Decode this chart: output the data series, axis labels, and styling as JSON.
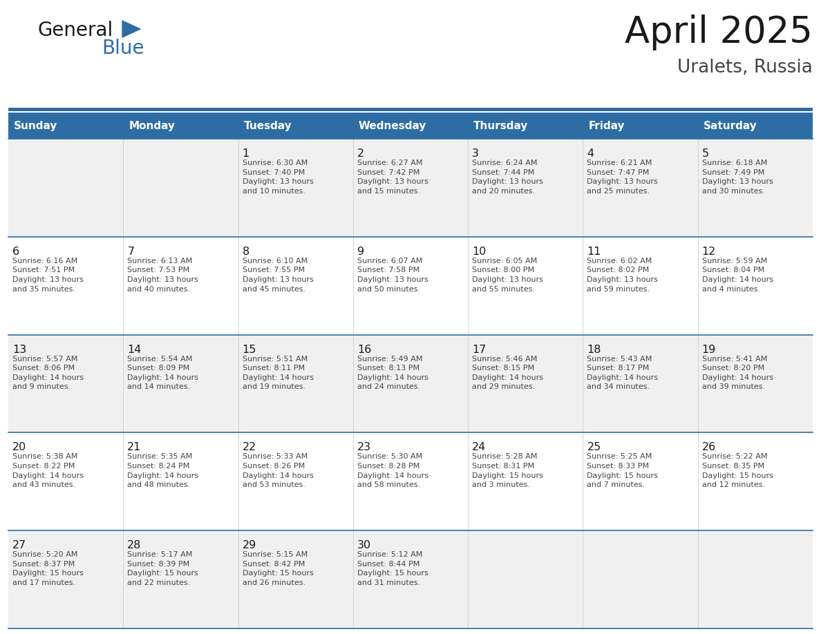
{
  "title": "April 2025",
  "subtitle": "Uralets, Russia",
  "days_of_week": [
    "Sunday",
    "Monday",
    "Tuesday",
    "Wednesday",
    "Thursday",
    "Friday",
    "Saturday"
  ],
  "header_bg": "#2E6DA4",
  "header_text": "#FFFFFF",
  "cell_bg_light": "#F0F0F0",
  "cell_bg_white": "#FFFFFF",
  "cell_border_color": "#2E6DA4",
  "day_number_color": "#1a1a1a",
  "cell_text_color": "#444444",
  "title_color": "#1a1a1a",
  "subtitle_color": "#444444",
  "logo_general_color": "#1a1a1a",
  "logo_blue_color": "#2E6DA4",
  "weeks": [
    [
      {
        "day": null,
        "info": null
      },
      {
        "day": null,
        "info": null
      },
      {
        "day": 1,
        "info": "Sunrise: 6:30 AM\nSunset: 7:40 PM\nDaylight: 13 hours\nand 10 minutes."
      },
      {
        "day": 2,
        "info": "Sunrise: 6:27 AM\nSunset: 7:42 PM\nDaylight: 13 hours\nand 15 minutes."
      },
      {
        "day": 3,
        "info": "Sunrise: 6:24 AM\nSunset: 7:44 PM\nDaylight: 13 hours\nand 20 minutes."
      },
      {
        "day": 4,
        "info": "Sunrise: 6:21 AM\nSunset: 7:47 PM\nDaylight: 13 hours\nand 25 minutes."
      },
      {
        "day": 5,
        "info": "Sunrise: 6:18 AM\nSunset: 7:49 PM\nDaylight: 13 hours\nand 30 minutes."
      }
    ],
    [
      {
        "day": 6,
        "info": "Sunrise: 6:16 AM\nSunset: 7:51 PM\nDaylight: 13 hours\nand 35 minutes."
      },
      {
        "day": 7,
        "info": "Sunrise: 6:13 AM\nSunset: 7:53 PM\nDaylight: 13 hours\nand 40 minutes."
      },
      {
        "day": 8,
        "info": "Sunrise: 6:10 AM\nSunset: 7:55 PM\nDaylight: 13 hours\nand 45 minutes."
      },
      {
        "day": 9,
        "info": "Sunrise: 6:07 AM\nSunset: 7:58 PM\nDaylight: 13 hours\nand 50 minutes."
      },
      {
        "day": 10,
        "info": "Sunrise: 6:05 AM\nSunset: 8:00 PM\nDaylight: 13 hours\nand 55 minutes."
      },
      {
        "day": 11,
        "info": "Sunrise: 6:02 AM\nSunset: 8:02 PM\nDaylight: 13 hours\nand 59 minutes."
      },
      {
        "day": 12,
        "info": "Sunrise: 5:59 AM\nSunset: 8:04 PM\nDaylight: 14 hours\nand 4 minutes."
      }
    ],
    [
      {
        "day": 13,
        "info": "Sunrise: 5:57 AM\nSunset: 8:06 PM\nDaylight: 14 hours\nand 9 minutes."
      },
      {
        "day": 14,
        "info": "Sunrise: 5:54 AM\nSunset: 8:09 PM\nDaylight: 14 hours\nand 14 minutes."
      },
      {
        "day": 15,
        "info": "Sunrise: 5:51 AM\nSunset: 8:11 PM\nDaylight: 14 hours\nand 19 minutes."
      },
      {
        "day": 16,
        "info": "Sunrise: 5:49 AM\nSunset: 8:13 PM\nDaylight: 14 hours\nand 24 minutes."
      },
      {
        "day": 17,
        "info": "Sunrise: 5:46 AM\nSunset: 8:15 PM\nDaylight: 14 hours\nand 29 minutes."
      },
      {
        "day": 18,
        "info": "Sunrise: 5:43 AM\nSunset: 8:17 PM\nDaylight: 14 hours\nand 34 minutes."
      },
      {
        "day": 19,
        "info": "Sunrise: 5:41 AM\nSunset: 8:20 PM\nDaylight: 14 hours\nand 39 minutes."
      }
    ],
    [
      {
        "day": 20,
        "info": "Sunrise: 5:38 AM\nSunset: 8:22 PM\nDaylight: 14 hours\nand 43 minutes."
      },
      {
        "day": 21,
        "info": "Sunrise: 5:35 AM\nSunset: 8:24 PM\nDaylight: 14 hours\nand 48 minutes."
      },
      {
        "day": 22,
        "info": "Sunrise: 5:33 AM\nSunset: 8:26 PM\nDaylight: 14 hours\nand 53 minutes."
      },
      {
        "day": 23,
        "info": "Sunrise: 5:30 AM\nSunset: 8:28 PM\nDaylight: 14 hours\nand 58 minutes."
      },
      {
        "day": 24,
        "info": "Sunrise: 5:28 AM\nSunset: 8:31 PM\nDaylight: 15 hours\nand 3 minutes."
      },
      {
        "day": 25,
        "info": "Sunrise: 5:25 AM\nSunset: 8:33 PM\nDaylight: 15 hours\nand 7 minutes."
      },
      {
        "day": 26,
        "info": "Sunrise: 5:22 AM\nSunset: 8:35 PM\nDaylight: 15 hours\nand 12 minutes."
      }
    ],
    [
      {
        "day": 27,
        "info": "Sunrise: 5:20 AM\nSunset: 8:37 PM\nDaylight: 15 hours\nand 17 minutes."
      },
      {
        "day": 28,
        "info": "Sunrise: 5:17 AM\nSunset: 8:39 PM\nDaylight: 15 hours\nand 22 minutes."
      },
      {
        "day": 29,
        "info": "Sunrise: 5:15 AM\nSunset: 8:42 PM\nDaylight: 15 hours\nand 26 minutes."
      },
      {
        "day": 30,
        "info": "Sunrise: 5:12 AM\nSunset: 8:44 PM\nDaylight: 15 hours\nand 31 minutes."
      },
      {
        "day": null,
        "info": null
      },
      {
        "day": null,
        "info": null
      },
      {
        "day": null,
        "info": null
      }
    ]
  ],
  "fig_width": 11.88,
  "fig_height": 9.18,
  "dpi": 100
}
